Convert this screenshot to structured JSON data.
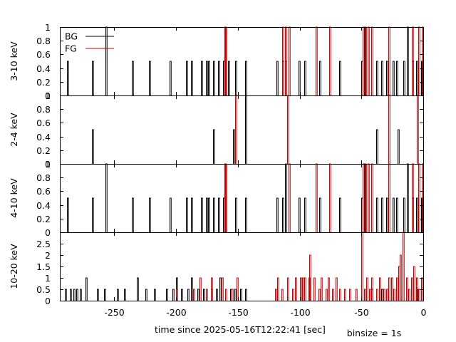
{
  "chart_data": {
    "type": "line",
    "xlabel": "time since 2025-05-16T12:22:41 [sec]",
    "note": "binsize = 1s",
    "xlim": [
      -294,
      0
    ],
    "x_ticks": [
      -250,
      -200,
      -150,
      -100,
      -50,
      0
    ],
    "x_tick_labels": [
      "-250",
      "-200",
      "-150",
      "-100",
      "-50",
      "0"
    ],
    "grid": false,
    "legend_position": "top-left",
    "series_styles": [
      {
        "name": "BG",
        "color": "#000000"
      },
      {
        "name": "FG",
        "color": "#cc0000"
      }
    ],
    "panels": [
      {
        "ylabel": "3-10 keV",
        "ylim": [
          0,
          1
        ],
        "y_ticks": [
          0,
          0.2,
          0.4,
          0.6,
          0.8,
          1
        ],
        "y_tick_labels": [
          "0",
          "0.2",
          "0.4",
          "0.6",
          "0.8",
          "1"
        ],
        "show_legend": true,
        "series": [
          {
            "name": "BG",
            "points": [
              [
                -288,
                0.5
              ],
              [
                -268,
                0.5
              ],
              [
                -257,
                1
              ],
              [
                -236,
                0.5
              ],
              [
                -222,
                0.5
              ],
              [
                -205,
                0.5
              ],
              [
                -192,
                0.5
              ],
              [
                -188,
                0.5
              ],
              [
                -180,
                0.5
              ],
              [
                -176,
                0.5
              ],
              [
                -174,
                0.5
              ],
              [
                -170,
                0.5
              ],
              [
                -166,
                0.5
              ],
              [
                -162,
                0.5
              ],
              [
                -158,
                0.5
              ],
              [
                -152,
                0.5
              ],
              [
                -144,
                0.5
              ],
              [
                -119,
                0.5
              ],
              [
                -114,
                0.5
              ],
              [
                -112,
                0.5
              ],
              [
                -101,
                0.5
              ],
              [
                -96,
                0.5
              ],
              [
                -84,
                0.5
              ],
              [
                -68,
                0.5
              ],
              [
                -50,
                0.5
              ],
              [
                -48,
                1
              ],
              [
                -38,
                0.5
              ],
              [
                -34,
                0.5
              ],
              [
                -30,
                0.5
              ],
              [
                -25,
                0.5
              ],
              [
                -22,
                0.5
              ],
              [
                -16,
                0.5
              ],
              [
                -13,
                1
              ],
              [
                -9,
                0.5
              ],
              [
                -6,
                0.5
              ],
              [
                -2,
                0.5
              ]
            ]
          },
          {
            "name": "FG",
            "points": [
              [
                -161,
                1
              ],
              [
                -160,
                1
              ],
              [
                -114,
                1
              ],
              [
                -112,
                1
              ],
              [
                -109,
                1
              ],
              [
                -87,
                1
              ],
              [
                -76,
                1
              ],
              [
                -49,
                1
              ],
              [
                -47,
                1
              ],
              [
                -45,
                1
              ],
              [
                -42,
                1
              ],
              [
                -28,
                1
              ],
              [
                -9,
                1
              ],
              [
                -4,
                1
              ],
              [
                -1,
                1
              ]
            ]
          }
        ]
      },
      {
        "ylabel": "2-4 keV",
        "ylim": [
          0,
          1
        ],
        "y_ticks": [
          0,
          0.2,
          0.4,
          0.6,
          0.8,
          1
        ],
        "y_tick_labels": [
          "0",
          "0.2",
          "0.4",
          "0.6",
          "0.8",
          "1"
        ],
        "show_legend": false,
        "series": [
          {
            "name": "BG",
            "points": [
              [
                -268,
                0.5
              ],
              [
                -170,
                0.5
              ],
              [
                -154,
                0.5
              ],
              [
                -144,
                1
              ],
              [
                -38,
                0.5
              ],
              [
                -21,
                0.5
              ]
            ]
          },
          {
            "name": "FG",
            "points": [
              [
                -152,
                1
              ],
              [
                -110,
                1
              ],
              [
                -28,
                1
              ],
              [
                -5,
                1
              ]
            ]
          }
        ]
      },
      {
        "ylabel": "4-10 keV",
        "ylim": [
          0,
          1
        ],
        "y_ticks": [
          0,
          0.2,
          0.4,
          0.6,
          0.8,
          1
        ],
        "y_tick_labels": [
          "0",
          "0.2",
          "0.4",
          "0.6",
          "0.8",
          "1"
        ],
        "show_legend": false,
        "series": [
          {
            "name": "BG",
            "points": [
              [
                -288,
                0.5
              ],
              [
                -268,
                0.5
              ],
              [
                -257,
                1
              ],
              [
                -236,
                0.5
              ],
              [
                -222,
                0.5
              ],
              [
                -205,
                0.5
              ],
              [
                -192,
                0.5
              ],
              [
                -188,
                0.5
              ],
              [
                -180,
                0.5
              ],
              [
                -176,
                0.5
              ],
              [
                -174,
                0.5
              ],
              [
                -170,
                0.5
              ],
              [
                -166,
                0.5
              ],
              [
                -162,
                0.5
              ],
              [
                -152,
                0.5
              ],
              [
                -144,
                0.5
              ],
              [
                -119,
                0.5
              ],
              [
                -114,
                0.5
              ],
              [
                -112,
                1
              ],
              [
                -101,
                0.5
              ],
              [
                -96,
                0.5
              ],
              [
                -84,
                0.5
              ],
              [
                -68,
                0.5
              ],
              [
                -50,
                0.5
              ],
              [
                -48,
                1
              ],
              [
                -38,
                0.5
              ],
              [
                -34,
                0.5
              ],
              [
                -30,
                0.5
              ],
              [
                -25,
                0.5
              ],
              [
                -22,
                0.5
              ],
              [
                -16,
                0.5
              ],
              [
                -13,
                1
              ],
              [
                -9,
                0.5
              ],
              [
                -6,
                0.5
              ],
              [
                -2,
                0.5
              ]
            ]
          },
          {
            "name": "FG",
            "points": [
              [
                -161,
                1
              ],
              [
                -160,
                1
              ],
              [
                -109,
                1
              ],
              [
                -87,
                1
              ],
              [
                -76,
                1
              ],
              [
                -49,
                1
              ],
              [
                -47,
                1
              ],
              [
                -45,
                1
              ],
              [
                -42,
                1
              ],
              [
                -28,
                1
              ],
              [
                -9,
                1
              ],
              [
                -4,
                1
              ],
              [
                -1,
                1
              ]
            ]
          }
        ]
      },
      {
        "ylabel": "10-20 keV",
        "ylim": [
          0,
          3
        ],
        "y_ticks": [
          0,
          0.5,
          1,
          1.5,
          2,
          2.5
        ],
        "y_tick_labels": [
          "0",
          "0.5",
          "1",
          "1.5",
          "2",
          "2.5"
        ],
        "show_legend": false,
        "series": [
          {
            "name": "BG",
            "points": [
              [
                -290,
                0.5
              ],
              [
                -286,
                0.5
              ],
              [
                -283,
                0.5
              ],
              [
                -281,
                0.5
              ],
              [
                -278,
                0.5
              ],
              [
                -273,
                1
              ],
              [
                -264,
                0.5
              ],
              [
                -258,
                0.5
              ],
              [
                -248,
                0.5
              ],
              [
                -242,
                0.5
              ],
              [
                -232,
                1
              ],
              [
                -225,
                0.5
              ],
              [
                -218,
                0.5
              ],
              [
                -208,
                0.5
              ],
              [
                -203,
                0.5
              ],
              [
                -200,
                1
              ],
              [
                -196,
                0.5
              ],
              [
                -191,
                0.5
              ],
              [
                -188,
                1
              ],
              [
                -183,
                0.5
              ],
              [
                -178,
                0.5
              ],
              [
                -172,
                0.5
              ],
              [
                -168,
                0.5
              ],
              [
                -165,
                1
              ],
              [
                -156,
                0.5
              ],
              [
                -153,
                0.5
              ],
              [
                -148,
                0.5
              ],
              [
                -144,
                0.5
              ],
              [
                -42,
                0.5
              ],
              [
                -34,
                0.5
              ],
              [
                -5,
                0.5
              ]
            ]
          },
          {
            "name": "FG",
            "points": [
              [
                -200,
                0.5
              ],
              [
                -186,
                0.5
              ],
              [
                -181,
                1
              ],
              [
                -176,
                0.5
              ],
              [
                -172,
                1
              ],
              [
                -163,
                1
              ],
              [
                -160,
                0.5
              ],
              [
                -155,
                0.5
              ],
              [
                -151,
                1
              ],
              [
                -120,
                0.5
              ],
              [
                -118,
                1
              ],
              [
                -115,
                0.5
              ],
              [
                -110,
                1
              ],
              [
                -106,
                0.5
              ],
              [
                -104,
                1
              ],
              [
                -100,
                1
              ],
              [
                -98,
                1
              ],
              [
                -96,
                1
              ],
              [
                -93,
                1
              ],
              [
                -92,
                2
              ],
              [
                -89,
                1
              ],
              [
                -85,
                0.5
              ],
              [
                -83,
                1
              ],
              [
                -79,
                0.5
              ],
              [
                -77,
                1
              ],
              [
                -74,
                0.5
              ],
              [
                -71,
                1
              ],
              [
                -68,
                0.5
              ],
              [
                -64,
                0.5
              ],
              [
                -60,
                0.5
              ],
              [
                -55,
                0.5
              ],
              [
                -50,
                3
              ],
              [
                -48,
                0.5
              ],
              [
                -46,
                1
              ],
              [
                -44,
                0.5
              ],
              [
                -42,
                1
              ],
              [
                -38,
                0.5
              ],
              [
                -36,
                1
              ],
              [
                -32,
                0.5
              ],
              [
                -30,
                0.5
              ],
              [
                -28,
                1
              ],
              [
                -26,
                1
              ],
              [
                -24,
                0.5
              ],
              [
                -22,
                1
              ],
              [
                -20,
                1.5
              ],
              [
                -19,
                2
              ],
              [
                -17,
                3
              ],
              [
                -14,
                1
              ],
              [
                -12,
                0.5
              ],
              [
                -10,
                1
              ],
              [
                -8,
                1.5
              ],
              [
                -6,
                1
              ],
              [
                -4,
                0.5
              ],
              [
                -2,
                1
              ]
            ]
          }
        ]
      }
    ]
  }
}
